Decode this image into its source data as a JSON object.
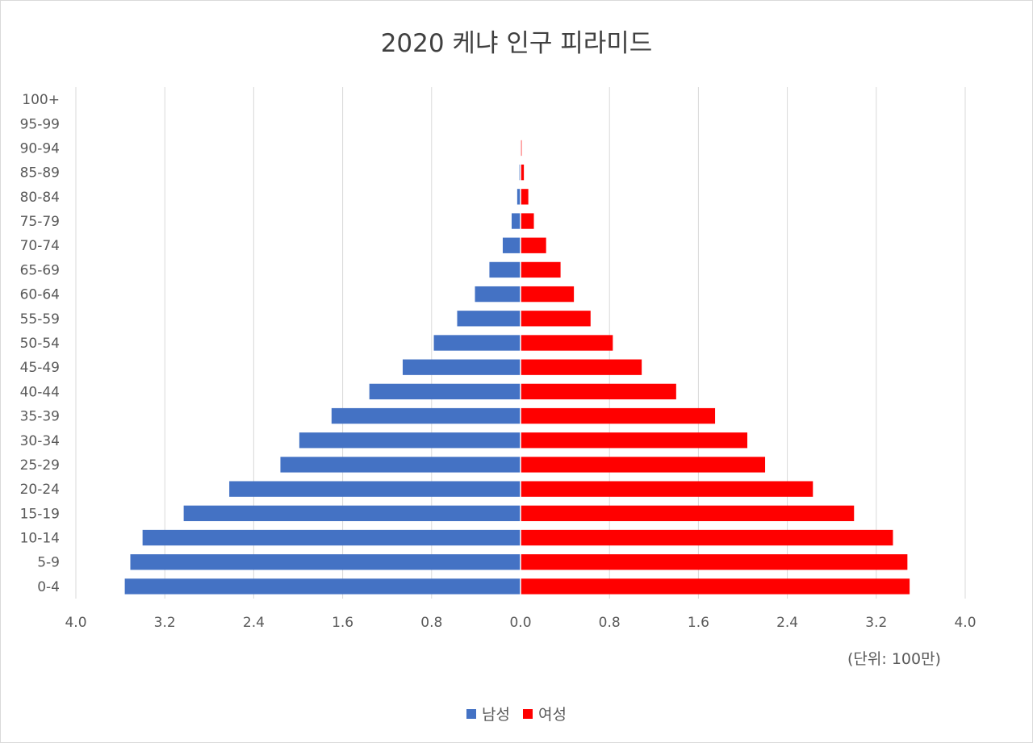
{
  "chart_data": {
    "type": "bar",
    "title": "2020 케냐 인구 피라미드",
    "unit_label": "(단위: 100만)",
    "categories": [
      "0-4",
      "5-9",
      "10-14",
      "15-19",
      "20-24",
      "25-29",
      "30-34",
      "35-39",
      "40-44",
      "45-49",
      "50-54",
      "55-59",
      "60-64",
      "65-69",
      "70-74",
      "75-79",
      "80-84",
      "85-89",
      "90-94",
      "95-99",
      "100+"
    ],
    "series": [
      {
        "name": "남성",
        "color": "#4472c4",
        "values": [
          3.56,
          3.51,
          3.4,
          3.03,
          2.62,
          2.16,
          1.99,
          1.7,
          1.36,
          1.06,
          0.78,
          0.57,
          0.41,
          0.28,
          0.16,
          0.08,
          0.03,
          0.01,
          0.004,
          0.001,
          0.0
        ]
      },
      {
        "name": "여성",
        "color": "#ff0000",
        "values": [
          3.5,
          3.48,
          3.35,
          3.0,
          2.63,
          2.2,
          2.04,
          1.75,
          1.4,
          1.09,
          0.83,
          0.63,
          0.48,
          0.36,
          0.23,
          0.12,
          0.07,
          0.03,
          0.01,
          0.003,
          0.001
        ]
      }
    ],
    "x_ticks": [
      "4.0",
      "3.2",
      "2.4",
      "1.6",
      "0.8",
      "0.0",
      "0.8",
      "1.6",
      "2.4",
      "3.2",
      "4.0"
    ],
    "xlim": [
      -4.0,
      4.0
    ],
    "grid": true,
    "legend_position": "bottom"
  }
}
